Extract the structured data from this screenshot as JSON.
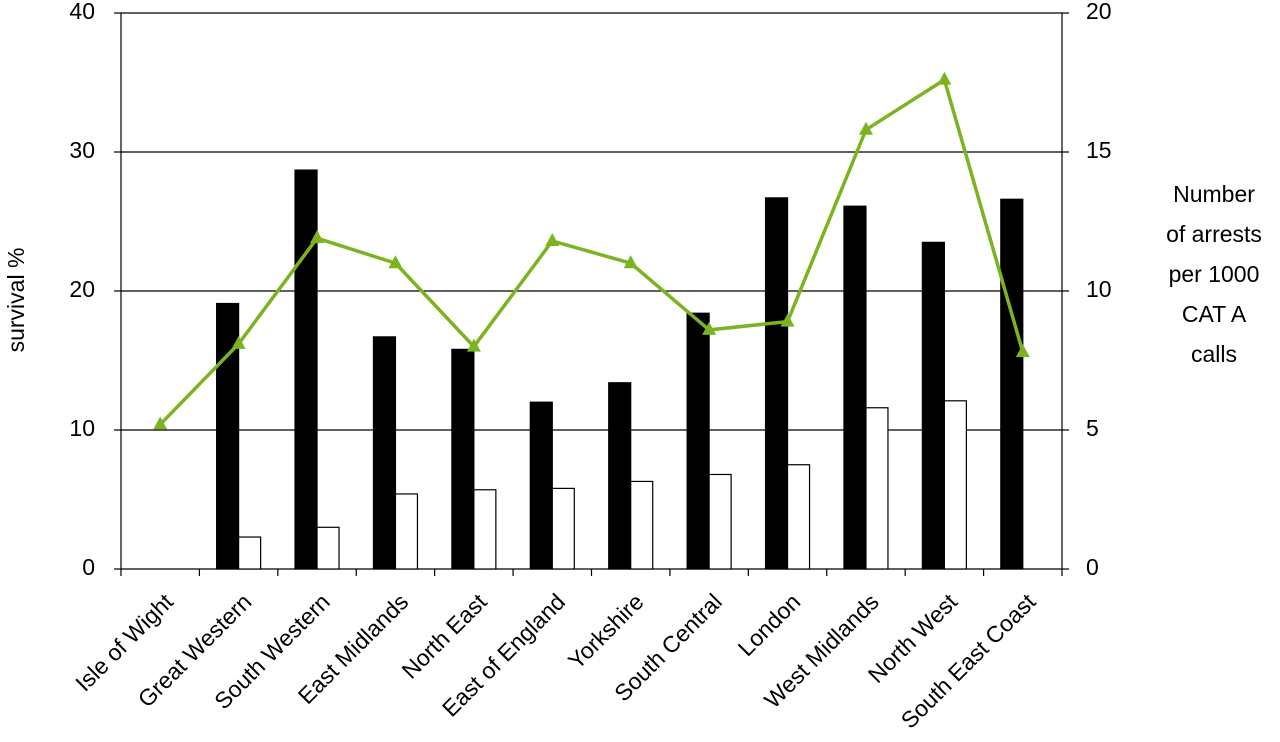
{
  "chart_data": {
    "type": "bar_line",
    "ylabel": "survival  %",
    "y2label": [
      "Number",
      "of arrests",
      "per 1000",
      "CAT A",
      "calls"
    ],
    "categories": [
      "Isle of Wight",
      "Great Western",
      "South Western",
      "East Midlands",
      "North East",
      "East of England",
      "Yorkshire",
      "South Central",
      "London",
      "West Midlands",
      "North West",
      "South East Coast"
    ],
    "series": [
      {
        "type": "bar",
        "color": "#000000",
        "values": [
          null,
          19.1,
          28.7,
          16.7,
          15.8,
          12.0,
          13.4,
          18.4,
          26.7,
          26.1,
          23.5,
          26.6
        ]
      },
      {
        "type": "bar",
        "color": "#ffffff",
        "values": [
          null,
          2.3,
          3.0,
          5.4,
          5.7,
          5.8,
          6.3,
          6.8,
          7.5,
          11.6,
          12.1,
          null
        ]
      },
      {
        "type": "line",
        "color": "#7cb321",
        "axis": "y2",
        "values": [
          5.2,
          8.1,
          11.9,
          11.0,
          8.0,
          11.8,
          11.0,
          8.6,
          8.9,
          15.8,
          17.6,
          7.8
        ]
      }
    ],
    "ylim": [
      0,
      40
    ],
    "yticks": [
      0,
      10,
      20,
      30,
      40
    ],
    "y2lim": [
      0,
      20
    ],
    "y2ticks": [
      0,
      5,
      10,
      15,
      20
    ],
    "grid": true
  }
}
